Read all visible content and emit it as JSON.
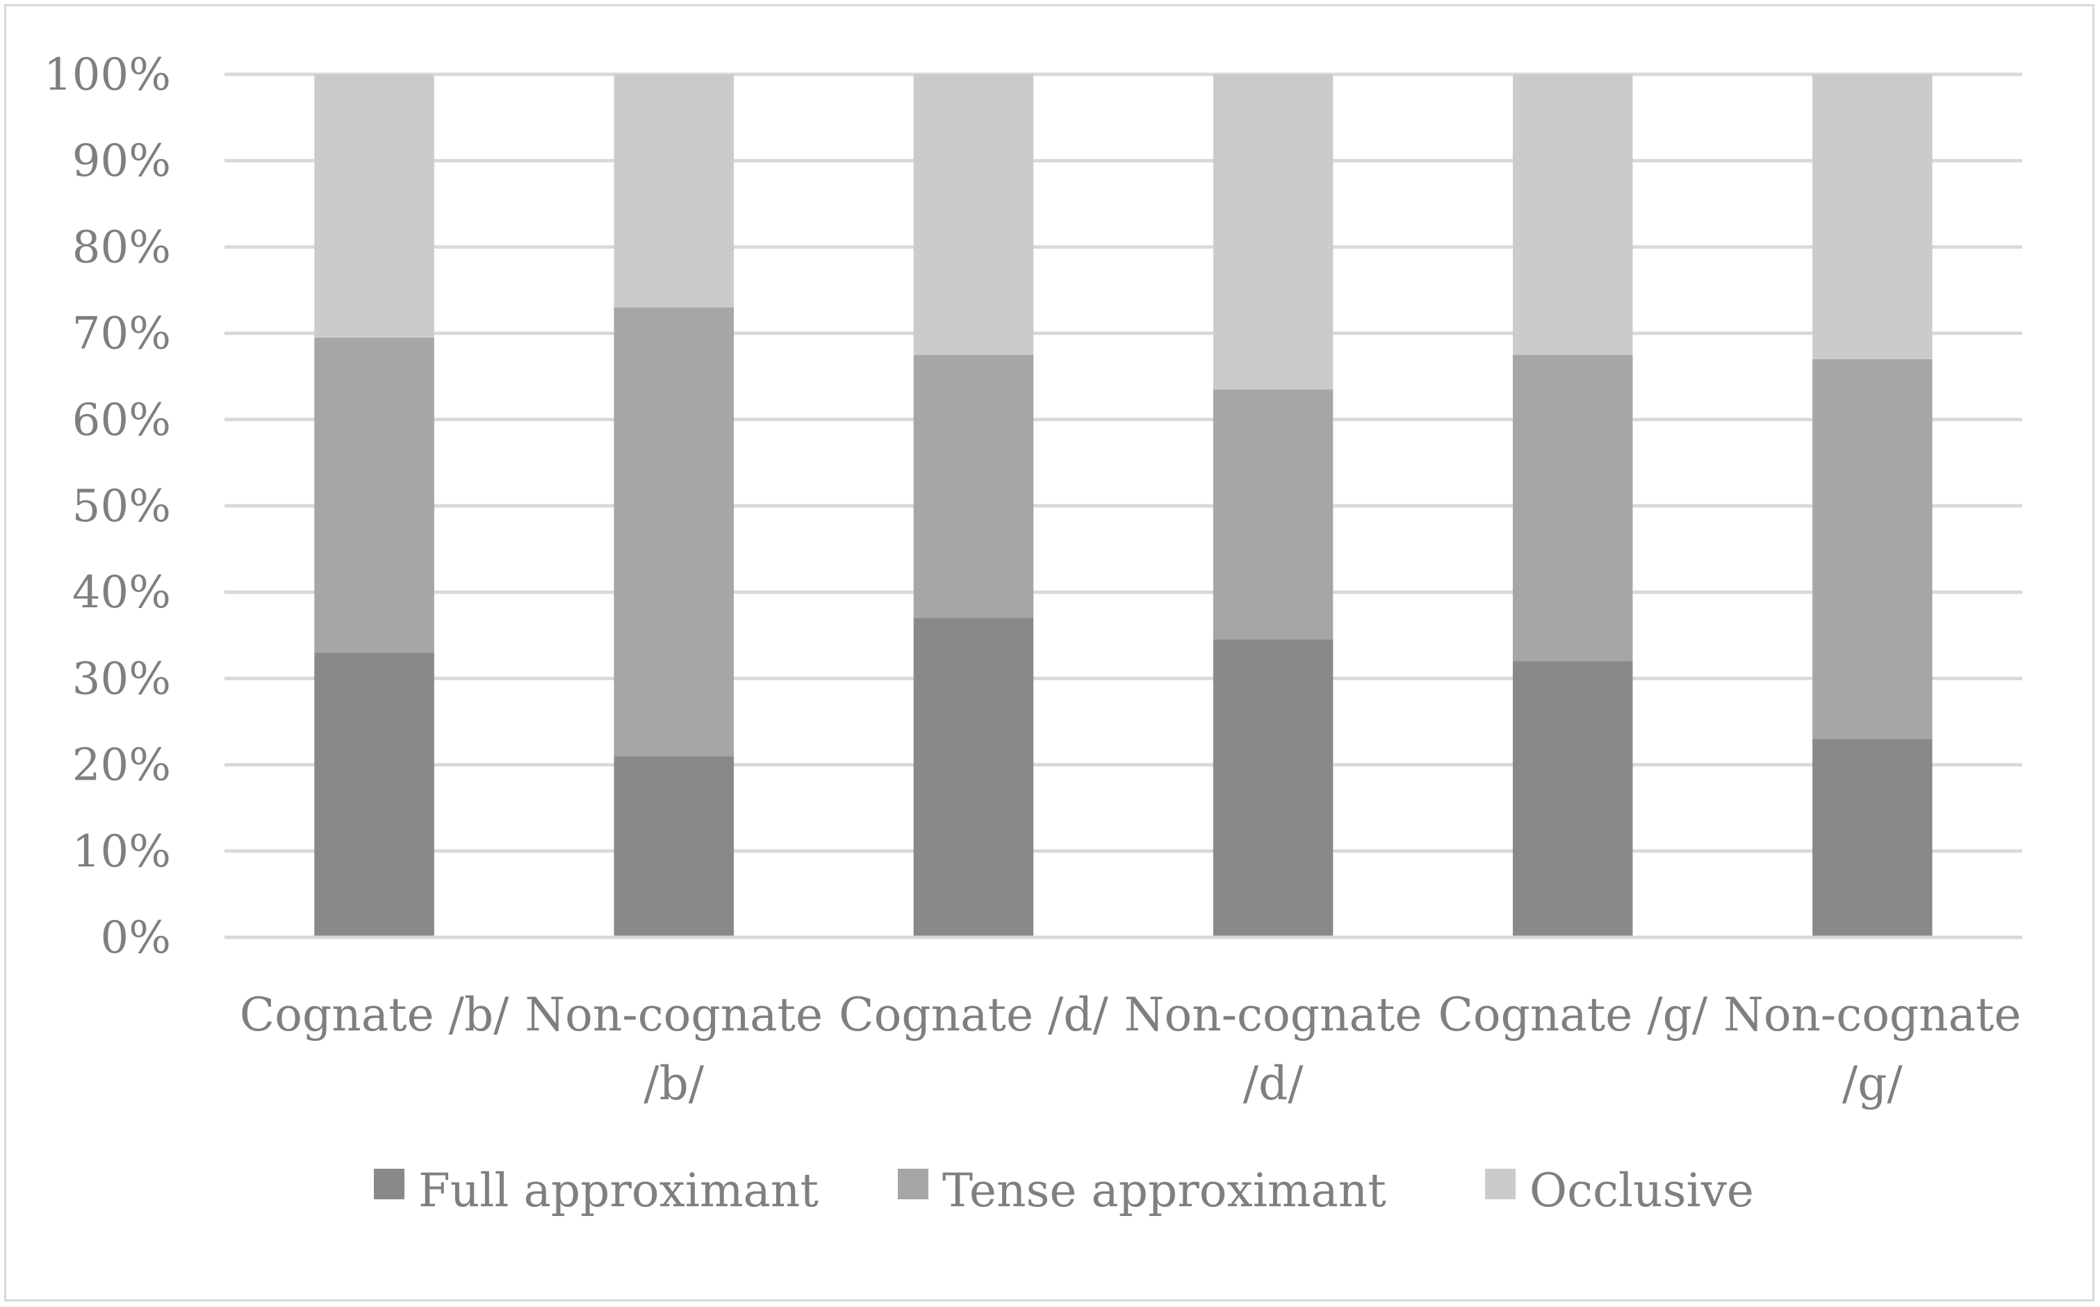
{
  "chart_data": {
    "type": "bar",
    "stacked": true,
    "percent": true,
    "categories": [
      [
        "Cognate /b/"
      ],
      [
        "Non-cognate",
        "/b/"
      ],
      [
        "Cognate /d/"
      ],
      [
        "Non-cognate",
        "/d/"
      ],
      [
        "Cognate /g/"
      ],
      [
        "Non-cognate",
        "/g/"
      ]
    ],
    "series": [
      {
        "name": "Full approximant",
        "color": "#898989",
        "values": [
          33,
          21,
          37,
          34.5,
          32,
          23
        ]
      },
      {
        "name": "Tense approximant",
        "color": "#a6a6a6",
        "values": [
          36.5,
          52,
          30.5,
          29,
          35.5,
          44
        ]
      },
      {
        "name": "Occlusive",
        "color": "#cbcbcb",
        "values": [
          30.5,
          27,
          32.5,
          36.5,
          32.5,
          33
        ]
      }
    ],
    "yticks": [
      "0%",
      "10%",
      "20%",
      "30%",
      "40%",
      "50%",
      "60%",
      "70%",
      "80%",
      "90%",
      "100%"
    ],
    "ylim": [
      0,
      100
    ],
    "grid": true,
    "legend_position": "bottom"
  }
}
